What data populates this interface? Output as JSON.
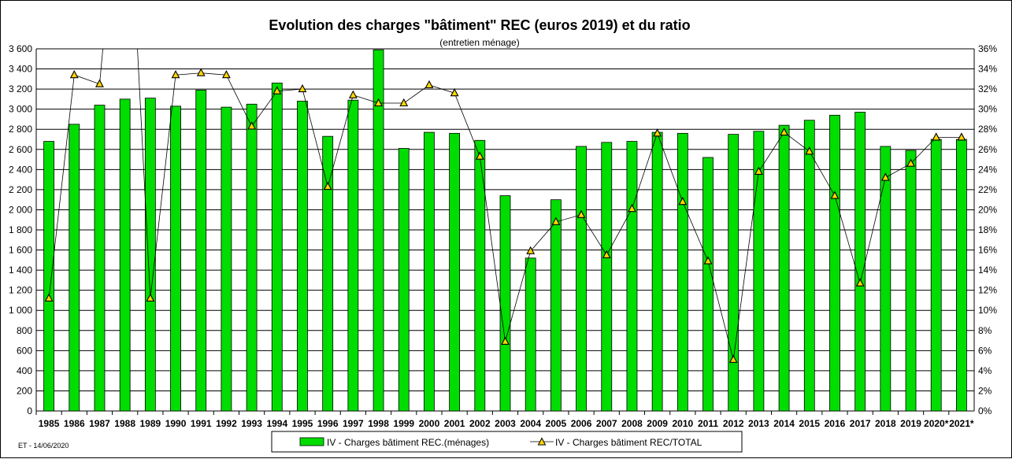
{
  "chart_data": {
    "type": "bar",
    "title": "Evolution des charges \"bâtiment\"  REC (euros 2019) et du ratio",
    "subtitle": "(entretien ménage)",
    "categories": [
      "1985",
      "1986",
      "1987",
      "1988",
      "1989",
      "1990",
      "1991",
      "1992",
      "1993",
      "1994",
      "1995",
      "1996",
      "1997",
      "1998",
      "1999",
      "2000",
      "2001",
      "2002",
      "2003",
      "2004",
      "2005",
      "2006",
      "2007",
      "2008",
      "2009",
      "2010",
      "2011",
      "2012",
      "2013",
      "2014",
      "2015",
      "2016",
      "2017",
      "2018",
      "2019",
      "2020*",
      "2021*"
    ],
    "series": [
      {
        "name": "IV - Charges  bâtiment REC.(ménages)",
        "type": "bar",
        "axis": "left",
        "color": "#00dd00",
        "values": [
          2680,
          2850,
          3040,
          3100,
          3110,
          3030,
          3190,
          3020,
          3050,
          3260,
          3080,
          2730,
          3090,
          3590,
          2610,
          2770,
          2760,
          2690,
          2140,
          1520,
          2100,
          2630,
          2670,
          2680,
          2770,
          2760,
          2520,
          2750,
          2780,
          2840,
          2890,
          2940,
          2970,
          2630,
          2590,
          2700,
          2700
        ]
      },
      {
        "name": "IV - Charges  bâtiment REC/TOTAL",
        "type": "line",
        "axis": "right",
        "unit": "%",
        "color": "#000000",
        "marker_color": "#ffd700",
        "values": [
          11.2,
          33.4,
          32.5,
          null,
          11.2,
          33.4,
          33.6,
          33.4,
          28.3,
          31.8,
          32.0,
          22.3,
          31.4,
          30.6,
          30.6,
          32.4,
          31.6,
          25.3,
          6.9,
          15.9,
          18.8,
          19.5,
          15.5,
          20.1,
          27.6,
          20.8,
          14.9,
          5.1,
          23.8,
          27.7,
          25.8,
          21.4,
          12.7,
          23.2,
          24.6,
          27.2,
          27.2
        ]
      }
    ],
    "ylim_left": [
      0,
      3600
    ],
    "ylim_right": [
      0,
      36
    ],
    "yticks_left": [
      "0",
      "200",
      "400",
      "600",
      "800",
      "1 000",
      "1 200",
      "1 400",
      "1 600",
      "1 800",
      "2 000",
      "2 200",
      "2 400",
      "2 600",
      "2 800",
      "3 000",
      "3 200",
      "3 400",
      "3 600"
    ],
    "yticks_right": [
      "0%",
      "2%",
      "4%",
      "6%",
      "8%",
      "10%",
      "12%",
      "14%",
      "16%",
      "18%",
      "20%",
      "22%",
      "24%",
      "26%",
      "28%",
      "30%",
      "32%",
      "34%",
      "36%"
    ],
    "grid": true,
    "legend_position": "bottom"
  },
  "footer": "ET - 14/06/2020"
}
